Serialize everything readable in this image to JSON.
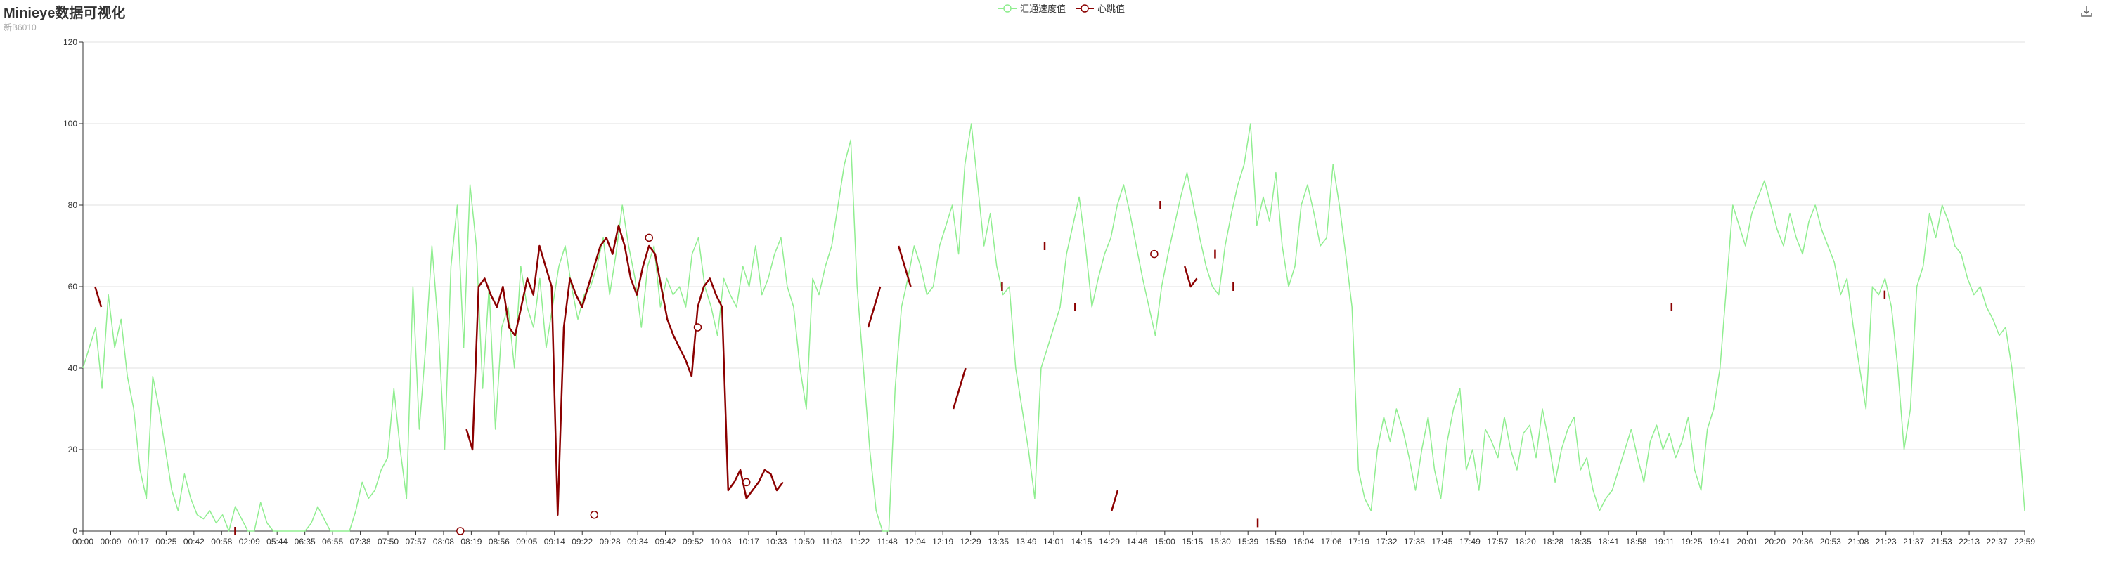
{
  "header": {
    "title": "Minieye数据可视化",
    "subtitle": "新B6010"
  },
  "toolbar": {
    "download_icon": "download-icon"
  },
  "chart_data": {
    "type": "line",
    "title": "Minieye数据可视化",
    "subtitle": "新B6010",
    "ylim": [
      0,
      120
    ],
    "yticks": [
      0,
      20,
      40,
      60,
      80,
      100,
      120
    ],
    "grid": true,
    "legend_position": "top-center",
    "xticks": [
      "00:00",
      "00:09",
      "00:17",
      "00:25",
      "00:42",
      "00:58",
      "02:09",
      "05:44",
      "06:35",
      "06:55",
      "07:38",
      "07:50",
      "07:57",
      "08:08",
      "08:19",
      "08:56",
      "09:05",
      "09:14",
      "09:22",
      "09:28",
      "09:34",
      "09:42",
      "09:52",
      "10:03",
      "10:17",
      "10:33",
      "10:50",
      "11:03",
      "11:22",
      "11:48",
      "12:04",
      "12:19",
      "12:29",
      "13:35",
      "13:49",
      "14:01",
      "14:15",
      "14:29",
      "14:46",
      "15:00",
      "15:15",
      "15:30",
      "15:39",
      "15:59",
      "16:04",
      "17:06",
      "17:19",
      "17:32",
      "17:38",
      "17:45",
      "17:49",
      "17:57",
      "18:20",
      "18:28",
      "18:35",
      "18:41",
      "18:58",
      "19:11",
      "19:25",
      "19:41",
      "20:01",
      "20:20",
      "20:36",
      "20:53",
      "21:08",
      "21:23",
      "21:37",
      "21:53",
      "22:13",
      "22:37",
      "22:59"
    ],
    "series": [
      {
        "name": "汇通速度值",
        "color": "#90EE90",
        "values": [
          40,
          45,
          50,
          35,
          58,
          45,
          52,
          38,
          30,
          15,
          8,
          38,
          30,
          20,
          10,
          5,
          14,
          8,
          4,
          3,
          5,
          2,
          4,
          0,
          6,
          3,
          0,
          0,
          7,
          2,
          0,
          0,
          0,
          0,
          0,
          0,
          2,
          6,
          3,
          0,
          0,
          0,
          0,
          5,
          12,
          8,
          10,
          15,
          18,
          35,
          20,
          8,
          60,
          25,
          45,
          70,
          50,
          20,
          65,
          80,
          45,
          85,
          70,
          35,
          60,
          25,
          50,
          55,
          40,
          65,
          55,
          50,
          62,
          45,
          55,
          65,
          70,
          60,
          52,
          58,
          60,
          65,
          72,
          58,
          68,
          80,
          70,
          62,
          50,
          65,
          70,
          55,
          62,
          58,
          60,
          55,
          68,
          72,
          60,
          55,
          48,
          62,
          58,
          55,
          65,
          60,
          70,
          58,
          62,
          68,
          72,
          60,
          55,
          40,
          30,
          62,
          58,
          65,
          70,
          80,
          90,
          96,
          60,
          40,
          20,
          5,
          0,
          0,
          35,
          55,
          62,
          70,
          65,
          58,
          60,
          70,
          75,
          80,
          68,
          90,
          100,
          85,
          70,
          78,
          65,
          58,
          60,
          40,
          30,
          20,
          8,
          40,
          45,
          50,
          55,
          68,
          75,
          82,
          70,
          55,
          62,
          68,
          72,
          80,
          85,
          78,
          70,
          62,
          55,
          48,
          60,
          68,
          75,
          82,
          88,
          80,
          72,
          65,
          60,
          58,
          70,
          78,
          85,
          90,
          100,
          75,
          82,
          76,
          88,
          70,
          60,
          65,
          80,
          85,
          78,
          70,
          72,
          90,
          80,
          68,
          55,
          15,
          8,
          5,
          20,
          28,
          22,
          30,
          25,
          18,
          10,
          20,
          28,
          15,
          8,
          22,
          30,
          35,
          15,
          20,
          10,
          25,
          22,
          18,
          28,
          20,
          15,
          24,
          26,
          18,
          30,
          22,
          12,
          20,
          25,
          28,
          15,
          18,
          10,
          5,
          8,
          10,
          15,
          20,
          25,
          18,
          12,
          22,
          26,
          20,
          24,
          18,
          22,
          28,
          15,
          10,
          25,
          30,
          40,
          60,
          80,
          75,
          70,
          78,
          82,
          86,
          80,
          74,
          70,
          78,
          72,
          68,
          76,
          80,
          74,
          70,
          66,
          58,
          62,
          50,
          40,
          30,
          60,
          58,
          62,
          55,
          40,
          20,
          30,
          60,
          65,
          78,
          72,
          80,
          76,
          70,
          68,
          62,
          58,
          60,
          55,
          52,
          48,
          50,
          40,
          25,
          5
        ]
      },
      {
        "name": "心跳值",
        "color": "#8B0000",
        "values": [
          null,
          null,
          60,
          55,
          null,
          null,
          null,
          null,
          null,
          null,
          null,
          null,
          null,
          null,
          null,
          null,
          null,
          null,
          null,
          null,
          null,
          null,
          null,
          null,
          null,
          0,
          null,
          null,
          null,
          null,
          null,
          null,
          null,
          null,
          null,
          null,
          null,
          null,
          null,
          null,
          null,
          null,
          null,
          null,
          null,
          null,
          null,
          null,
          null,
          null,
          null,
          null,
          null,
          null,
          null,
          null,
          null,
          null,
          null,
          null,
          null,
          null,
          null,
          25,
          20,
          60,
          62,
          58,
          55,
          60,
          50,
          48,
          55,
          62,
          58,
          70,
          65,
          60,
          4,
          50,
          62,
          58,
          55,
          60,
          65,
          70,
          72,
          68,
          75,
          70,
          62,
          58,
          65,
          70,
          68,
          60,
          52,
          48,
          45,
          42,
          38,
          55,
          60,
          62,
          58,
          55,
          10,
          12,
          15,
          8,
          10,
          12,
          15,
          14,
          10,
          12,
          null,
          null,
          null,
          null,
          null,
          null,
          null,
          null,
          null,
          null,
          null,
          null,
          null,
          50,
          55,
          60,
          null,
          null,
          70,
          65,
          60,
          null,
          null,
          null,
          null,
          null,
          null,
          30,
          35,
          40,
          null,
          null,
          null,
          null,
          null,
          60,
          null,
          null,
          null,
          null,
          null,
          null,
          70,
          null,
          null,
          null,
          null,
          55,
          null,
          null,
          null,
          null,
          null,
          5,
          10,
          null,
          null,
          null,
          null,
          null,
          null,
          80,
          null,
          null,
          null,
          65,
          60,
          62,
          null,
          null,
          68,
          null,
          null,
          60,
          null,
          null,
          null,
          2,
          null,
          null,
          null,
          null,
          null,
          null,
          null,
          null,
          null,
          null,
          null,
          null,
          null,
          null,
          null,
          null,
          null,
          null,
          null,
          null,
          null,
          null,
          null,
          null,
          null,
          null,
          null,
          null,
          null,
          null,
          null,
          null,
          null,
          null,
          null,
          null,
          null,
          null,
          null,
          null,
          null,
          null,
          null,
          null,
          null,
          null,
          null,
          null,
          null,
          null,
          null,
          null,
          null,
          null,
          null,
          null,
          null,
          null,
          null,
          null,
          null,
          null,
          null,
          null,
          null,
          null,
          null,
          55,
          null,
          null,
          null,
          null,
          null,
          null,
          null,
          null,
          null,
          null,
          null,
          null,
          null,
          null,
          null,
          null,
          null,
          null,
          null,
          null,
          null,
          null,
          null,
          null,
          null,
          null,
          null,
          null,
          null,
          null,
          null,
          null,
          null,
          null,
          58,
          null,
          null,
          null,
          null,
          null,
          null,
          null,
          null,
          null,
          null,
          null,
          null,
          null,
          null,
          null,
          null,
          null,
          null,
          null,
          null,
          null,
          null,
          null
        ],
        "markers": [
          {
            "index": 62,
            "value": 0
          },
          {
            "index": 84,
            "value": 4
          },
          {
            "index": 93,
            "value": 72
          },
          {
            "index": 101,
            "value": 50
          },
          {
            "index": 109,
            "value": 12
          },
          {
            "index": 176,
            "value": 68
          }
        ]
      }
    ]
  }
}
